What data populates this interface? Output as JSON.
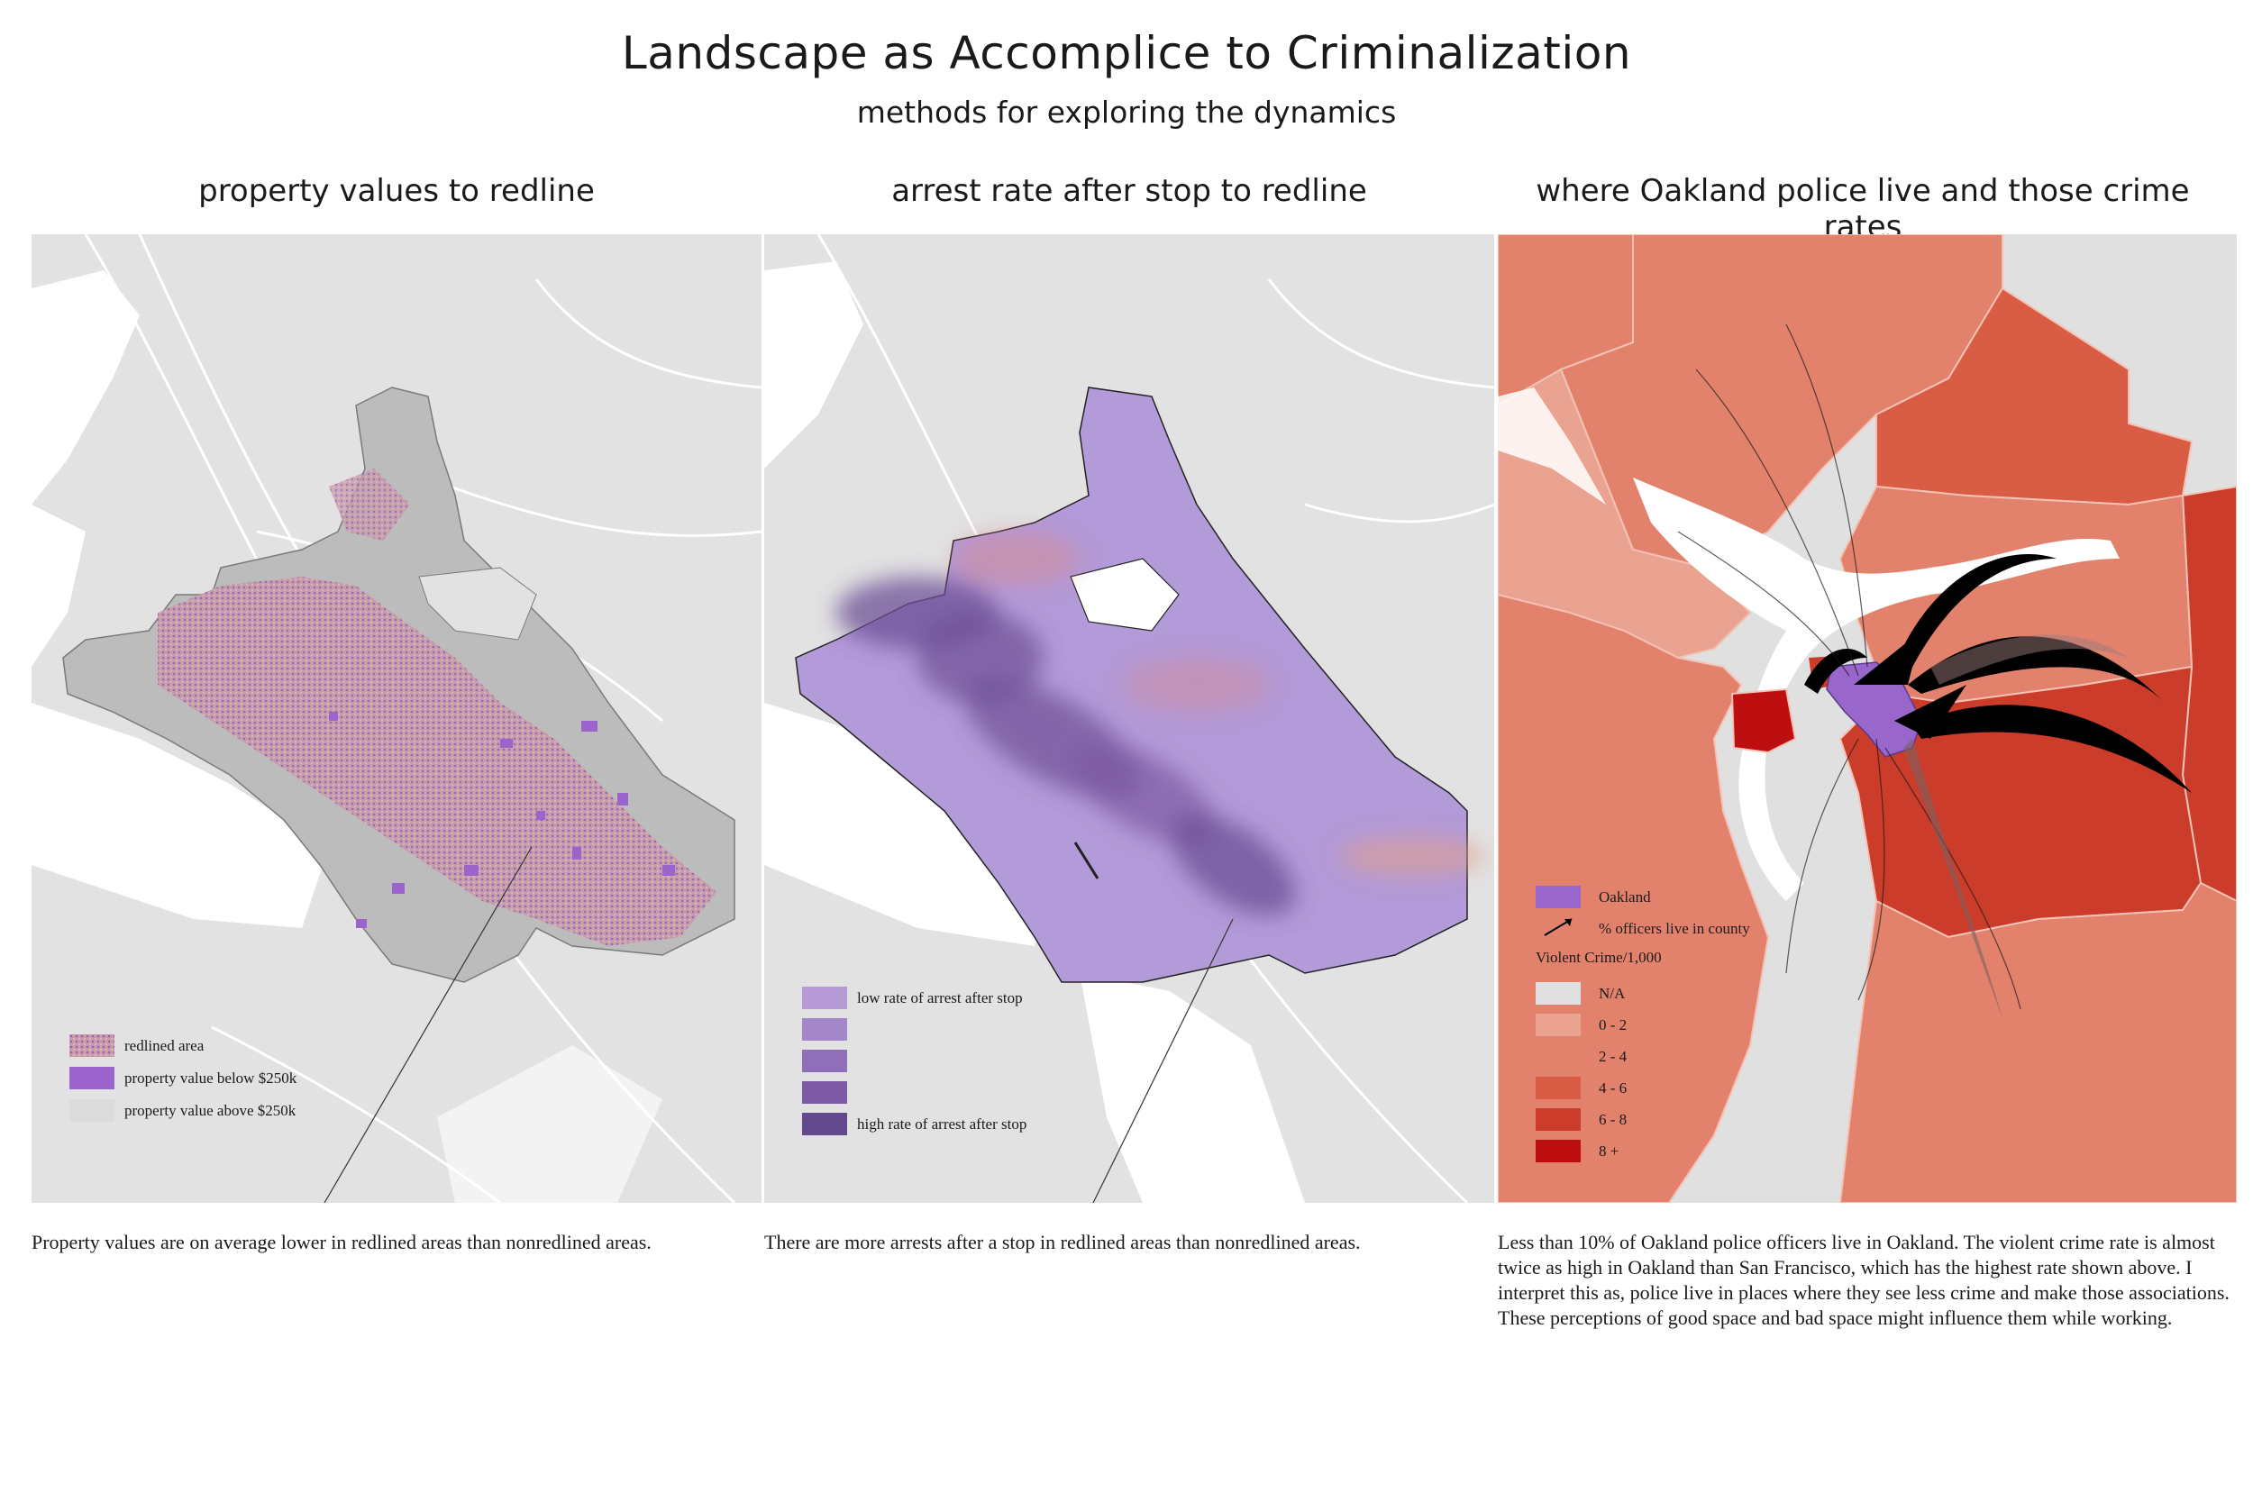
{
  "header": {
    "title": "Landscape as Accomplice to Criminalization",
    "subtitle": "methods for exploring the dynamics"
  },
  "panels": [
    {
      "title": "property values to redline",
      "legend": [
        {
          "label": "redlined area",
          "color": "#c99aa8"
        },
        {
          "label": "property value below $250k",
          "color": "#9b63cc"
        },
        {
          "label": "property value above $250k",
          "color": "#dcdcdc"
        }
      ],
      "caption": "Property values are on average lower in redlined areas than nonredlined areas."
    },
    {
      "title": "arrest rate after stop to redline",
      "legend": [
        {
          "label": "low rate of arrest after stop",
          "color": "#b79bd6"
        },
        {
          "label": "",
          "color": "#a387c8"
        },
        {
          "label": "",
          "color": "#8f6fb8"
        },
        {
          "label": "",
          "color": "#7c5aa6"
        },
        {
          "label": "high rate of arrest after stop",
          "color": "#634a8f"
        }
      ],
      "caption": "There are more arrests after a stop in redlined areas than nonredlined areas."
    },
    {
      "title": "where Oakland police live and those crime rates",
      "legend_oakland": {
        "label": "Oakland",
        "color": "#9966cc"
      },
      "legend_arrow": {
        "label": "% officers live in county"
      },
      "legend_heading": "Violent Crime/1,000",
      "legend": [
        {
          "label": "N/A",
          "color": "#e0e0e0"
        },
        {
          "label": "0 - 2",
          "color": "#eaa390"
        },
        {
          "label": "2 - 4",
          "color": "#e3826c"
        },
        {
          "label": "4 - 6",
          "color": "#d95c45"
        },
        {
          "label": "6 - 8",
          "color": "#cb3d2a"
        },
        {
          "label": "8 +",
          "color": "#bd0f0f"
        }
      ],
      "caption": "Less than 10% of Oakland police officers live in Oakland. The violent crime rate is almost twice as high in Oakland than San Francisco, which has the highest rate shown above. I interpret this as, police live in places where they see less crime and make those associations. These perceptions of good space and bad space might influence them while working."
    }
  ]
}
